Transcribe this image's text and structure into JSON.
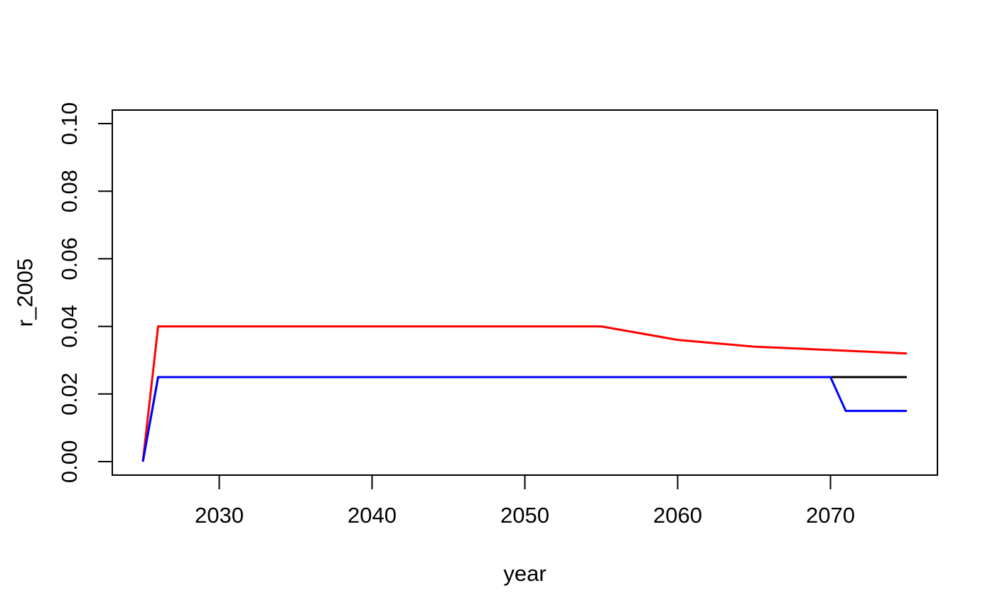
{
  "figure": {
    "background": "#ffffff",
    "axis_color": "#000000",
    "tick_label_color": "#000000"
  },
  "chart_data": {
    "type": "line",
    "title": "",
    "xlabel": "year",
    "ylabel": "r_2005",
    "xlim": [
      2023,
      2077
    ],
    "ylim": [
      -0.004,
      0.104
    ],
    "x_data_range": [
      2025,
      2075
    ],
    "y_data_range": [
      0.0,
      0.1
    ],
    "x_ticks": [
      2030,
      2040,
      2050,
      2060,
      2070
    ],
    "x_tick_labels": [
      "2030",
      "2040",
      "2050",
      "2060",
      "2070"
    ],
    "y_ticks": [
      0.0,
      0.02,
      0.04,
      0.06,
      0.08,
      0.1
    ],
    "y_tick_labels": [
      "0.00",
      "0.02",
      "0.04",
      "0.06",
      "0.08",
      "0.10"
    ],
    "grid": false,
    "legend": null,
    "series": [
      {
        "name": "black-line",
        "color": "#000000",
        "points": [
          [
            2025,
            0.0
          ],
          [
            2026,
            0.025
          ],
          [
            2070,
            0.025
          ],
          [
            2075,
            0.025
          ]
        ]
      },
      {
        "name": "red-line",
        "color": "#ff0000",
        "points": [
          [
            2025,
            0.0
          ],
          [
            2026,
            0.04
          ],
          [
            2055,
            0.04
          ],
          [
            2060,
            0.036
          ],
          [
            2065,
            0.034
          ],
          [
            2070,
            0.033
          ],
          [
            2075,
            0.032
          ]
        ]
      },
      {
        "name": "blue-line",
        "color": "#0000ff",
        "points": [
          [
            2025,
            0.0
          ],
          [
            2026,
            0.025
          ],
          [
            2070,
            0.025
          ],
          [
            2071,
            0.015
          ],
          [
            2075,
            0.015
          ]
        ]
      }
    ]
  }
}
